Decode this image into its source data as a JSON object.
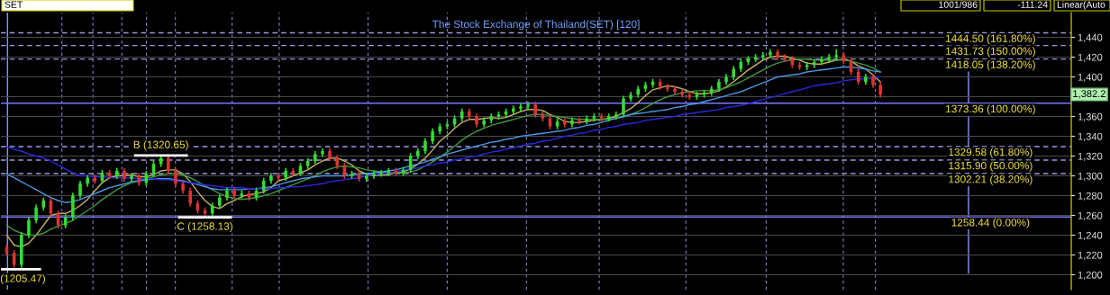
{
  "chart_data": {
    "type": "candlestick",
    "title": "The Stock Exchange of Thailand(SET) [120]",
    "categories": [
      null,
      null,
      null,
      null,
      null,
      null,
      null,
      null,
      null,
      null,
      null,
      null,
      null,
      null,
      null,
      null,
      null,
      null,
      null,
      null,
      null,
      null,
      null,
      null,
      null,
      null,
      null,
      null,
      null,
      null,
      null,
      null,
      null,
      null,
      null,
      null,
      null,
      null,
      null,
      null,
      null,
      null,
      null,
      null,
      null,
      null,
      null,
      null,
      null,
      null,
      null,
      null,
      null,
      null,
      null,
      null,
      null,
      null,
      null,
      null,
      null,
      null,
      null,
      null,
      null,
      null,
      null,
      null,
      null,
      null,
      null,
      null,
      null,
      null,
      null,
      null,
      null,
      null,
      null,
      null,
      null,
      null,
      null,
      null,
      null,
      null,
      null,
      null,
      null,
      null,
      null,
      null,
      null,
      null,
      null,
      null,
      null,
      null,
      null,
      null,
      null,
      null,
      null,
      null,
      null,
      null,
      null,
      null,
      null,
      null,
      null,
      null,
      null,
      null,
      null,
      null,
      null,
      null,
      null,
      null
    ],
    "ohlc": [
      [
        1228,
        1231,
        1219,
        1222
      ],
      [
        1222,
        1225,
        1205.47,
        1210
      ],
      [
        1210,
        1243,
        1207,
        1240
      ],
      [
        1240,
        1258,
        1237,
        1255
      ],
      [
        1255,
        1271,
        1252,
        1268
      ],
      [
        1268,
        1278,
        1265,
        1275
      ],
      [
        1275,
        1278,
        1259,
        1262
      ],
      [
        1262,
        1265,
        1247,
        1250
      ],
      [
        1250,
        1261,
        1247,
        1258
      ],
      [
        1258,
        1283,
        1255,
        1280
      ],
      [
        1280,
        1295,
        1277,
        1292
      ],
      [
        1292,
        1301,
        1289,
        1298
      ],
      [
        1298,
        1301,
        1292,
        1295
      ],
      [
        1295,
        1306,
        1292,
        1303
      ],
      [
        1303,
        1306,
        1297,
        1300
      ],
      [
        1300,
        1308,
        1297,
        1305
      ],
      [
        1305,
        1308,
        1294,
        1297
      ],
      [
        1297,
        1303,
        1294,
        1300
      ],
      [
        1300,
        1303,
        1290,
        1293
      ],
      [
        1293,
        1305,
        1290,
        1302
      ],
      [
        1302,
        1315,
        1299,
        1312
      ],
      [
        1312,
        1320.65,
        1309,
        1318
      ],
      [
        1318,
        1320,
        1302,
        1305
      ],
      [
        1305,
        1308,
        1289,
        1292
      ],
      [
        1292,
        1295,
        1282,
        1285
      ],
      [
        1285,
        1288,
        1269,
        1272
      ],
      [
        1272,
        1275,
        1262,
        1265
      ],
      [
        1265,
        1268,
        1258.13,
        1262
      ],
      [
        1262,
        1273,
        1259,
        1270
      ],
      [
        1270,
        1281,
        1267,
        1278
      ],
      [
        1278,
        1288,
        1275,
        1285
      ],
      [
        1285,
        1288,
        1277,
        1280
      ],
      [
        1280,
        1285,
        1277,
        1282
      ],
      [
        1282,
        1285,
        1275,
        1278
      ],
      [
        1278,
        1288,
        1275,
        1285
      ],
      [
        1285,
        1298,
        1282,
        1295
      ],
      [
        1295,
        1303,
        1292,
        1300
      ],
      [
        1300,
        1303,
        1295,
        1298
      ],
      [
        1298,
        1308,
        1295,
        1305
      ],
      [
        1305,
        1308,
        1300,
        1303
      ],
      [
        1303,
        1313,
        1300,
        1310
      ],
      [
        1310,
        1318,
        1307,
        1315
      ],
      [
        1315,
        1325,
        1312,
        1322
      ],
      [
        1322,
        1328,
        1319,
        1325
      ],
      [
        1325,
        1328,
        1315,
        1318
      ],
      [
        1318,
        1321,
        1307,
        1310
      ],
      [
        1310,
        1313,
        1297,
        1300
      ],
      [
        1300,
        1305,
        1297,
        1302
      ],
      [
        1302,
        1305,
        1294,
        1297
      ],
      [
        1297,
        1303,
        1294,
        1300
      ],
      [
        1300,
        1305,
        1297,
        1302
      ],
      [
        1302,
        1306,
        1299,
        1303
      ],
      [
        1303,
        1308,
        1300,
        1305
      ],
      [
        1305,
        1308,
        1300,
        1303
      ],
      [
        1303,
        1309,
        1300,
        1306
      ],
      [
        1306,
        1323,
        1303,
        1320
      ],
      [
        1320,
        1328,
        1317,
        1325
      ],
      [
        1325,
        1338,
        1322,
        1335
      ],
      [
        1335,
        1348,
        1332,
        1345
      ],
      [
        1345,
        1353,
        1342,
        1350
      ],
      [
        1350,
        1355,
        1347,
        1352
      ],
      [
        1352,
        1361,
        1349,
        1358
      ],
      [
        1358,
        1368,
        1355,
        1365
      ],
      [
        1365,
        1368,
        1357,
        1360
      ],
      [
        1360,
        1363,
        1349,
        1352
      ],
      [
        1352,
        1359,
        1349,
        1356
      ],
      [
        1356,
        1363,
        1353,
        1360
      ],
      [
        1360,
        1365,
        1357,
        1362
      ],
      [
        1362,
        1368,
        1359,
        1365
      ],
      [
        1365,
        1371,
        1362,
        1368
      ],
      [
        1368,
        1373,
        1365,
        1370
      ],
      [
        1370,
        1375,
        1367,
        1372
      ],
      [
        1372,
        1375,
        1359,
        1362
      ],
      [
        1362,
        1365,
        1355,
        1358
      ],
      [
        1358,
        1361,
        1347,
        1350
      ],
      [
        1350,
        1358,
        1347,
        1355
      ],
      [
        1355,
        1358,
        1349,
        1352
      ],
      [
        1352,
        1359,
        1349,
        1356
      ],
      [
        1356,
        1359,
        1352,
        1355
      ],
      [
        1355,
        1361,
        1352,
        1358
      ],
      [
        1358,
        1363,
        1355,
        1360
      ],
      [
        1360,
        1363,
        1355,
        1358
      ],
      [
        1358,
        1363,
        1355,
        1360
      ],
      [
        1360,
        1365,
        1357,
        1362
      ],
      [
        1362,
        1381,
        1359,
        1378
      ],
      [
        1378,
        1385,
        1375,
        1382
      ],
      [
        1382,
        1391,
        1379,
        1388
      ],
      [
        1388,
        1395,
        1385,
        1392
      ],
      [
        1392,
        1398,
        1389,
        1395
      ],
      [
        1395,
        1398,
        1387,
        1390
      ],
      [
        1390,
        1393,
        1385,
        1388
      ],
      [
        1388,
        1391,
        1382,
        1385
      ],
      [
        1385,
        1388,
        1379,
        1382
      ],
      [
        1382,
        1385,
        1377,
        1380
      ],
      [
        1380,
        1385,
        1377,
        1382
      ],
      [
        1382,
        1387,
        1379,
        1384
      ],
      [
        1384,
        1391,
        1381,
        1388
      ],
      [
        1388,
        1398,
        1385,
        1395
      ],
      [
        1395,
        1403,
        1392,
        1400
      ],
      [
        1400,
        1411,
        1397,
        1408
      ],
      [
        1408,
        1418,
        1405,
        1415
      ],
      [
        1415,
        1421,
        1412,
        1418
      ],
      [
        1418,
        1423,
        1415,
        1420
      ],
      [
        1420,
        1425,
        1417,
        1422
      ],
      [
        1422,
        1428,
        1419,
        1425
      ],
      [
        1425,
        1428,
        1417,
        1420
      ],
      [
        1420,
        1423,
        1415,
        1418
      ],
      [
        1418,
        1421,
        1409,
        1412
      ],
      [
        1412,
        1415,
        1407,
        1410
      ],
      [
        1410,
        1415,
        1407,
        1412
      ],
      [
        1412,
        1418,
        1409,
        1415
      ],
      [
        1415,
        1421,
        1412,
        1418
      ],
      [
        1418,
        1423,
        1415,
        1420
      ],
      [
        1420,
        1428,
        1417,
        1422
      ],
      [
        1422,
        1425,
        1413,
        1416
      ],
      [
        1416,
        1419,
        1402,
        1405
      ],
      [
        1405,
        1408,
        1392,
        1395
      ],
      [
        1395,
        1403,
        1392,
        1400
      ],
      [
        1400,
        1403,
        1389,
        1392
      ],
      [
        1392,
        1395,
        1379,
        1382.2
      ]
    ],
    "colors": [
      "#dd3333",
      "#dd3333",
      "#33dd33",
      "#33dd33",
      "#33dd33",
      "#33dd33",
      "#dd3333",
      "#dd3333",
      "#33dd33",
      "#33dd33",
      "#33dd33",
      "#33dd33",
      "#dd3333",
      "#33dd33",
      "#dd3333",
      "#33dd33",
      "#dd3333",
      "#33dd33",
      "#dd3333",
      "#33dd33",
      "#33dd33",
      "#33dd33",
      "#dd3333",
      "#dd3333",
      "#dd3333",
      "#dd3333",
      "#dd3333",
      "#dd3333",
      "#33dd33",
      "#33dd33",
      "#33dd33",
      "#dd3333",
      "#33dd33",
      "#dd3333",
      "#33dd33",
      "#33dd33",
      "#33dd33",
      "#dd3333",
      "#33dd33",
      "#dd3333",
      "#33dd33",
      "#33dd33",
      "#33dd33",
      "#33dd33",
      "#dd3333",
      "#dd3333",
      "#dd3333",
      "#33dd33",
      "#dd3333",
      "#33dd33",
      "#33dd33",
      "#33dd33",
      "#33dd33",
      "#dd3333",
      "#33dd33",
      "#33dd33",
      "#33dd33",
      "#33dd33",
      "#33dd33",
      "#33dd33",
      "#33dd33",
      "#33dd33",
      "#33dd33",
      "#dd3333",
      "#dd3333",
      "#33dd33",
      "#33dd33",
      "#33dd33",
      "#33dd33",
      "#33dd33",
      "#33dd33",
      "#33dd33",
      "#dd3333",
      "#dd3333",
      "#dd3333",
      "#33dd33",
      "#dd3333",
      "#33dd33",
      "#dd3333",
      "#33dd33",
      "#33dd33",
      "#dd3333",
      "#33dd33",
      "#33dd33",
      "#33dd33",
      "#33dd33",
      "#33dd33",
      "#33dd33",
      "#33dd33",
      "#dd3333",
      "#dd3333",
      "#dd3333",
      "#dd3333",
      "#dd3333",
      "#33dd33",
      "#33dd33",
      "#33dd33",
      "#33dd33",
      "#33dd33",
      "#33dd33",
      "#33dd33",
      "#33dd33",
      "#33dd33",
      "#33dd33",
      "#33dd33",
      "#dd3333",
      "#dd3333",
      "#dd3333",
      "#dd3333",
      "#33dd33",
      "#33dd33",
      "#33dd33",
      "#33dd33",
      "#33dd33",
      "#dd3333",
      "#dd3333",
      "#dd3333",
      "#33dd33",
      "#dd3333",
      "#dd3333"
    ],
    "series": [
      {
        "type": "line",
        "color": "#c8b060",
        "values": [
          1240,
          1230,
          1228,
          1232,
          1240,
          1250,
          1260,
          1262,
          1262,
          1265,
          1270,
          1276,
          1285,
          1293,
          1298,
          1300,
          1300,
          1301,
          1299,
          1299,
          1301,
          1305,
          1306,
          1306,
          1302,
          1294,
          1284,
          1275,
          1269,
          1267,
          1272,
          1275,
          1279,
          1281,
          1282,
          1284,
          1288,
          1295,
          1297,
          1300,
          1303,
          1306,
          1311,
          1315,
          1318,
          1318,
          1315,
          1311,
          1305,
          1302,
          1300,
          1301,
          1301,
          1303,
          1304,
          1307,
          1312,
          1318,
          1326,
          1335,
          1341,
          1348,
          1354,
          1357,
          1357,
          1358,
          1359,
          1358,
          1359,
          1362,
          1365,
          1367,
          1367,
          1366,
          1362,
          1359,
          1355,
          1354,
          1354,
          1355,
          1356,
          1357,
          1358,
          1360,
          1364,
          1368,
          1374,
          1381,
          1387,
          1389,
          1391,
          1390,
          1388,
          1385,
          1383,
          1383,
          1384,
          1386,
          1390,
          1395,
          1401,
          1407,
          1412,
          1417,
          1420,
          1421,
          1421,
          1419,
          1417,
          1414,
          1413,
          1413,
          1415,
          1417,
          1418,
          1416,
          1411,
          1408,
          1402,
          1395
        ]
      },
      {
        "type": "line",
        "color": "#3f9a3f",
        "values": [
          1250,
          1245,
          1242,
          1240,
          1240,
          1242,
          1246,
          1249,
          1252,
          1255,
          1260,
          1265,
          1270,
          1276,
          1281,
          1286,
          1290,
          1293,
          1295,
          1297,
          1299,
          1301,
          1302,
          1302,
          1301,
          1298,
          1294,
          1290,
          1286,
          1282,
          1279,
          1277,
          1276,
          1277,
          1278,
          1280,
          1282,
          1285,
          1288,
          1291,
          1294,
          1297,
          1300,
          1304,
          1307,
          1309,
          1310,
          1309,
          1308,
          1306,
          1305,
          1304,
          1303,
          1303,
          1303,
          1304,
          1306,
          1310,
          1314,
          1319,
          1324,
          1330,
          1336,
          1341,
          1345,
          1348,
          1351,
          1353,
          1355,
          1357,
          1359,
          1361,
          1362,
          1362,
          1361,
          1360,
          1359,
          1358,
          1357,
          1357,
          1357,
          1357,
          1357,
          1358,
          1360,
          1362,
          1365,
          1369,
          1373,
          1377,
          1380,
          1382,
          1384,
          1385,
          1386,
          1386,
          1386,
          1387,
          1389,
          1392,
          1395,
          1399,
          1403,
          1407,
          1411,
          1414,
          1416,
          1417,
          1418,
          1418,
          1417,
          1417,
          1417,
          1417,
          1417,
          1416,
          1414,
          1412,
          1409,
          1405
        ]
      },
      {
        "type": "line",
        "color": "#4a9ae8",
        "values": [
          1302,
          1298,
          1294,
          1290,
          1286,
          1282,
          1278,
          1275,
          1273,
          1274,
          1276,
          1279,
          1282,
          1285,
          1288,
          1290,
          1292,
          1294,
          1295,
          1296,
          1297,
          1297,
          1297,
          1296,
          1295,
          1293,
          1291,
          1289,
          1287,
          1286,
          1286,
          1286,
          1286,
          1287,
          1287,
          1288,
          1289,
          1291,
          1293,
          1295,
          1297,
          1298,
          1299,
          1300,
          1300,
          1300,
          1300,
          1301,
          1302,
          1302,
          1303,
          1304,
          1305,
          1306,
          1308,
          1310,
          1312,
          1314,
          1317,
          1319,
          1322,
          1324,
          1326,
          1328,
          1330,
          1332,
          1334,
          1335,
          1337,
          1338,
          1340,
          1341,
          1342,
          1343,
          1344,
          1345,
          1346,
          1348,
          1349,
          1351,
          1352,
          1354,
          1356,
          1358,
          1360,
          1362,
          1363,
          1364,
          1365,
          1366,
          1367,
          1369,
          1370,
          1372,
          1373,
          1375,
          1377,
          1379,
          1381,
          1383,
          1385,
          1388,
          1391,
          1394,
          1397,
          1400,
          1401,
          1402,
          1403,
          1405,
          1406,
          1407,
          1408,
          1409,
          1410,
          1410,
          1409,
          1408,
          1406,
          1405
        ]
      },
      {
        "type": "line",
        "color": "#2a2ae0",
        "values": [
          1329,
          1327,
          1325,
          1322,
          1320,
          1318,
          1315,
          1311,
          1307,
          1303,
          1300,
          1300,
          1299,
          1299,
          1298,
          1298,
          1298,
          1298,
          1297,
          1297,
          1297,
          1296,
          1296,
          1295,
          1294,
          1293,
          1292,
          1291,
          1290,
          1289,
          1288,
          1288,
          1288,
          1287,
          1287,
          1287,
          1287,
          1288,
          1288,
          1289,
          1289,
          1290,
          1291,
          1292,
          1294,
          1295,
          1296,
          1297,
          1298,
          1300,
          1301,
          1302,
          1303,
          1304,
          1306,
          1307,
          1308,
          1310,
          1311,
          1313,
          1314,
          1316,
          1317,
          1319,
          1320,
          1322,
          1324,
          1325,
          1327,
          1328,
          1330,
          1332,
          1333,
          1335,
          1336,
          1338,
          1340,
          1341,
          1343,
          1344,
          1346,
          1347,
          1349,
          1350,
          1352,
          1353,
          1354,
          1356,
          1357,
          1358,
          1359,
          1360,
          1362,
          1363,
          1364,
          1365,
          1366,
          1367,
          1369,
          1370,
          1371,
          1373,
          1375,
          1377,
          1379,
          1381,
          1383,
          1385,
          1387,
          1389,
          1391,
          1392,
          1393,
          1394,
          1396,
          1397,
          1398,
          1398,
          1399,
          1400
        ]
      }
    ],
    "ylim": [
      1185,
      1465
    ],
    "yticks": [
      {
        "value": 1200,
        "label": "1,200"
      },
      {
        "value": 1220,
        "label": "1,220"
      },
      {
        "value": 1240,
        "label": "1,240"
      },
      {
        "value": 1260,
        "label": "1,260"
      },
      {
        "value": 1280,
        "label": "1,280"
      },
      {
        "value": 1300,
        "label": "1,300"
      },
      {
        "value": 1320,
        "label": "1,320"
      },
      {
        "value": 1340,
        "label": "1,340"
      },
      {
        "value": 1360,
        "label": "1,360"
      },
      {
        "value": 1380,
        "label": null
      },
      {
        "value": 1400,
        "label": "1,400"
      },
      {
        "value": 1420,
        "label": "1,420"
      },
      {
        "value": 1440,
        "label": "1,440"
      }
    ],
    "grid": "y",
    "tick_labels": "y",
    "ref_lines": [
      {
        "axis": "y",
        "value": 1444.5,
        "label": "1444.50 (161.80%)",
        "color": "#9a9ae0",
        "line_style": "dashed"
      },
      {
        "axis": "y",
        "value": 1431.73,
        "label": "1431.73 (150.00%)",
        "color": "#9a9ae0",
        "line_style": "dashed"
      },
      {
        "axis": "y",
        "value": 1418.05,
        "label": "1418.05 (138.20%)",
        "color": "#9a9ae0",
        "line_style": "dashed"
      },
      {
        "axis": "y",
        "value": 1373.36,
        "label": "1373.36 (100.00%)",
        "color": "#7878ff",
        "line_style": "solid"
      },
      {
        "axis": "y",
        "value": 1329.58,
        "label": "1329.58 (61.80%)",
        "color": "#9a9ae0",
        "line_style": "dashed"
      },
      {
        "axis": "y",
        "value": 1315.9,
        "label": "1315.90 (50.00%)",
        "color": "#9a9ae0",
        "line_style": "dashed"
      },
      {
        "axis": "y",
        "value": 1302.21,
        "label": "1302.21 (38.20%)",
        "color": "#9a9ae0",
        "line_style": "dashed"
      },
      {
        "axis": "y",
        "value": 1258.44,
        "label": "1258.44 (0.00%)",
        "color": "#7878ff",
        "line_style": "solid"
      }
    ],
    "annotations": [
      {
        "text": "B (1320.65)",
        "y": 1320.65
      },
      {
        "text": "C (1258.13)",
        "y": 1258.13
      },
      {
        "text": "(1205.47)",
        "y": 1205.47
      },
      "1,382.2",
      "SET",
      "1001/986",
      "-111.24",
      "Linear(Auto"
    ]
  }
}
